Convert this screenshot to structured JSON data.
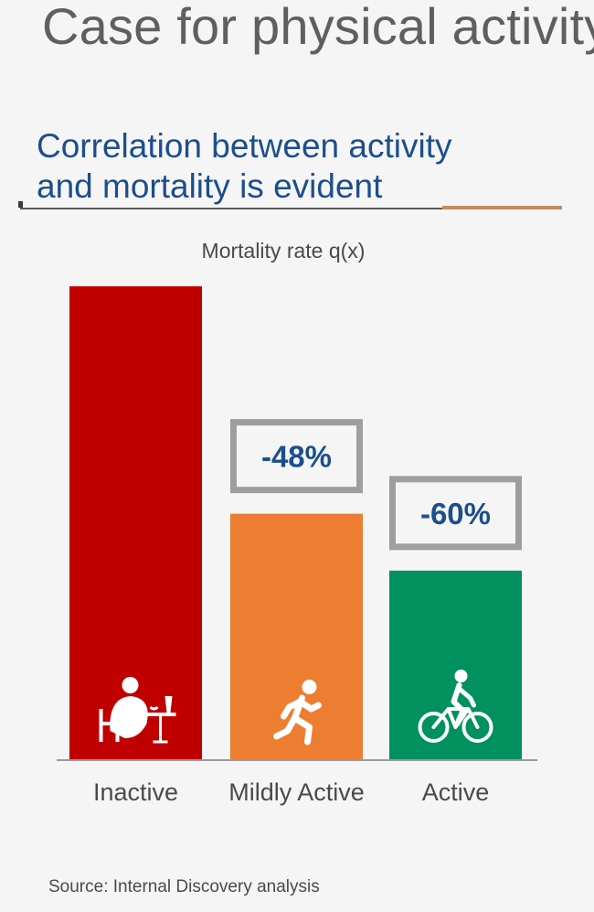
{
  "header": {
    "title": "Case for physical activity",
    "subtitle_line1": "Correlation between activity",
    "subtitle_line2": "and mortality is evident"
  },
  "chart_data": {
    "type": "bar",
    "title": "Mortality rate q(x)",
    "categories": [
      "Inactive",
      "Mildly Active",
      "Active"
    ],
    "values": [
      1.0,
      0.52,
      0.4
    ],
    "annotations": [
      "",
      "-48%",
      "-60%"
    ],
    "icons": [
      "person-eating-icon",
      "person-running-icon",
      "person-cycling-icon"
    ],
    "colors": [
      "#c00000",
      "#ed7d31",
      "#00915f"
    ],
    "ylim": [
      0,
      1.0
    ],
    "grid": false,
    "legend": "none"
  },
  "footer": {
    "source": "Source: Internal Discovery analysis"
  },
  "colors": {
    "title": "#5f5f5f",
    "subtitle": "#1c4e8c",
    "annotation_text": "#1c4e8c",
    "annotation_box": "#9e9e9e",
    "accent_rule": "#c28d62"
  }
}
